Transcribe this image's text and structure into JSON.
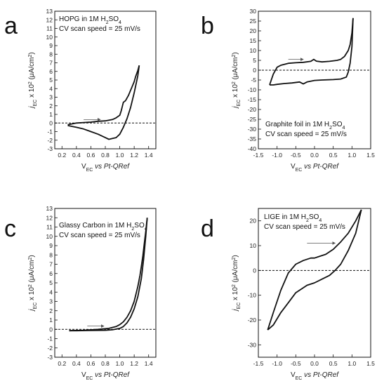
{
  "chart_data": [
    {
      "panel_label": "a",
      "type": "line",
      "annotation": [
        "HOPG in 1M H",
        "2",
        "SO",
        "4"
      ],
      "scan_speed": "CV scan speed = 25 mV/s",
      "xlabel": [
        "V",
        "EC",
        " vs Pt-QRef"
      ],
      "ylabel": [
        "j",
        "EC",
        " x 10",
        "2",
        " (μA/cm",
        "2",
        ")"
      ],
      "xlim": [
        0.1,
        1.5
      ],
      "ylim": [
        -3,
        13
      ],
      "xticks": [
        "0.2",
        "0.4",
        "0.6",
        "0.8",
        "1.0",
        "1.2",
        "1.4"
      ],
      "yticks": [
        "-3",
        "-2",
        "-1",
        "0",
        "1",
        "2",
        "3",
        "4",
        "5",
        "6",
        "7",
        "8",
        "9",
        "10",
        "11",
        "12",
        "13"
      ],
      "zero_line": true,
      "arrow": {
        "from": [
          0.5,
          0.4
        ],
        "to": [
          0.73,
          0.4
        ]
      },
      "series": [
        {
          "x": [
            0.28,
            0.4,
            0.5,
            0.6,
            0.7,
            0.8,
            0.9,
            0.95,
            1.0,
            1.02,
            1.05,
            1.08,
            1.1,
            1.12,
            1.15,
            1.18,
            1.2,
            1.22,
            1.25,
            1.27
          ],
          "y": [
            -0.2,
            0.0,
            0.05,
            0.1,
            0.2,
            0.25,
            0.4,
            0.6,
            0.9,
            1.4,
            2.4,
            2.6,
            2.9,
            3.2,
            3.8,
            4.4,
            4.8,
            5.4,
            6.1,
            6.7
          ]
        },
        {
          "x": [
            1.27,
            1.25,
            1.2,
            1.15,
            1.1,
            1.05,
            1.0,
            0.95,
            0.9,
            0.85,
            0.8,
            0.7,
            0.6,
            0.5,
            0.4,
            0.28
          ],
          "y": [
            6.7,
            5.5,
            3.5,
            1.8,
            0.5,
            -0.5,
            -1.3,
            -1.7,
            -1.8,
            -1.9,
            -1.7,
            -1.3,
            -1.0,
            -0.7,
            -0.5,
            -0.3
          ]
        }
      ]
    },
    {
      "panel_label": "b",
      "type": "line",
      "annotation": [
        "Graphite foil in 1M H",
        "2",
        "SO",
        "4"
      ],
      "scan_speed": "CV  scan speed = 25 mV/s",
      "xlabel": [
        "V",
        "EC",
        " vs Pt-QRef"
      ],
      "ylabel": [
        "j",
        "EC",
        " x 10",
        "2",
        " (μA/cm",
        "2",
        ")"
      ],
      "xlim": [
        -1.5,
        1.5
      ],
      "ylim": [
        -40,
        30
      ],
      "xticks": [
        "-1.5",
        "-1.0",
        "-0.5",
        "0.0",
        "0.5",
        "1.0",
        "1.5"
      ],
      "yticks": [
        "-40",
        "-35",
        "-30",
        "-25",
        "-20",
        "-15",
        "-10",
        "-5",
        "0",
        "5",
        "10",
        "15",
        "20",
        "25",
        "30"
      ],
      "zero_line": true,
      "arrow": {
        "from": [
          -0.7,
          5.5
        ],
        "to": [
          -0.3,
          5.5
        ]
      },
      "series": [
        {
          "x": [
            -1.2,
            -1.1,
            -1.0,
            -0.9,
            -0.7,
            -0.5,
            -0.3,
            -0.1,
            -0.02,
            0.05,
            0.2,
            0.4,
            0.6,
            0.7,
            0.8,
            0.9,
            0.95,
            1.0,
            1.03
          ],
          "y": [
            -7.5,
            -2.0,
            1.5,
            2.5,
            3.5,
            3.8,
            4.0,
            4.5,
            5.5,
            4.6,
            4.2,
            4.5,
            5.0,
            5.5,
            7.0,
            10,
            13,
            19,
            26.5
          ]
        },
        {
          "x": [
            1.03,
            1.0,
            0.95,
            0.9,
            0.85,
            0.7,
            0.5,
            0.2,
            0.0,
            -0.2,
            -0.3,
            -0.4,
            -0.6,
            -0.8,
            -1.0,
            -1.1,
            -1.2
          ],
          "y": [
            26.5,
            12,
            3.5,
            -1.0,
            -3.5,
            -4.5,
            -4.8,
            -5.0,
            -5.2,
            -6.0,
            -7.0,
            -6.0,
            -6.5,
            -6.8,
            -7.2,
            -7.5,
            -7.5
          ]
        }
      ]
    },
    {
      "panel_label": "c",
      "type": "line",
      "annotation": [
        "Glassy Carbon in 1M H",
        "2",
        "SO",
        "4"
      ],
      "scan_speed": "CV scan speed = 25 mV/s",
      "xlabel": [
        "V",
        "EC",
        " vs Pt-QRef"
      ],
      "ylabel": [
        "j",
        "EC",
        " x 10",
        "2",
        " (μA/cm",
        "2",
        ")"
      ],
      "xlim": [
        0.1,
        1.5
      ],
      "ylim": [
        -3,
        13
      ],
      "xticks": [
        "0.2",
        "0.4",
        "0.6",
        "0.8",
        "1.0",
        "1.2",
        "1.4"
      ],
      "yticks": [
        "-3",
        "-2",
        "-1",
        "0",
        "1",
        "2",
        "3",
        "4",
        "5",
        "6",
        "7",
        "8",
        "9",
        "10",
        "11",
        "12",
        "13"
      ],
      "zero_line": true,
      "arrow": {
        "from": [
          0.55,
          0.35
        ],
        "to": [
          0.78,
          0.35
        ]
      },
      "series": [
        {
          "x": [
            0.3,
            0.5,
            0.7,
            0.85,
            0.95,
            1.0,
            1.05,
            1.1,
            1.15,
            1.2,
            1.25,
            1.28,
            1.3,
            1.32,
            1.34,
            1.36,
            1.38
          ],
          "y": [
            -0.15,
            -0.1,
            0.0,
            0.1,
            0.3,
            0.5,
            0.8,
            1.3,
            2.0,
            3.0,
            4.6,
            5.8,
            6.8,
            7.9,
            9.2,
            10.5,
            12.0
          ]
        },
        {
          "x": [
            1.38,
            1.36,
            1.33,
            1.3,
            1.25,
            1.2,
            1.15,
            1.1,
            1.05,
            1.0,
            0.9,
            0.8,
            0.6,
            0.4,
            0.3
          ],
          "y": [
            12.0,
            10.0,
            7.5,
            5.5,
            3.5,
            2.2,
            1.3,
            0.7,
            0.3,
            0.1,
            -0.05,
            -0.1,
            -0.12,
            -0.15,
            -0.15
          ]
        }
      ]
    },
    {
      "panel_label": "d",
      "type": "line",
      "annotation": [
        "LIGE in 1M H",
        "2",
        "SO",
        "4"
      ],
      "scan_speed": "CV scan speed = 25 mV/s",
      "xlabel": [
        "V",
        "EC",
        " vs Pt-QRef"
      ],
      "ylabel": [
        "j",
        "EC",
        " x 10",
        "2",
        " (μA/cm",
        "2",
        ")"
      ],
      "xlim": [
        -1.5,
        1.5
      ],
      "ylim": [
        -35,
        25
      ],
      "xticks": [
        "-1.5",
        "-1.0",
        "-0.5",
        "0.0",
        "0.5",
        "1.0",
        "1.5"
      ],
      "yticks": [
        "-30",
        "-20",
        "-10",
        "0",
        "10",
        "20"
      ],
      "zero_line": true,
      "arrow": {
        "from": [
          -0.2,
          11
        ],
        "to": [
          0.55,
          11
        ]
      },
      "series": [
        {
          "x": [
            -1.25,
            -1.1,
            -0.9,
            -0.7,
            -0.5,
            -0.3,
            -0.1,
            0.0,
            0.1,
            0.3,
            0.5,
            0.7,
            0.9,
            1.1,
            1.25
          ],
          "y": [
            -24,
            -17,
            -8,
            -1,
            2.5,
            4,
            5,
            5,
            5.5,
            6.5,
            8.5,
            11.5,
            15,
            20,
            24.5
          ]
        },
        {
          "x": [
            1.25,
            1.1,
            0.9,
            0.7,
            0.55,
            0.4,
            0.2,
            0.0,
            -0.2,
            -0.5,
            -0.7,
            -0.9,
            -1.1,
            -1.25
          ],
          "y": [
            24.5,
            15,
            8,
            2.5,
            0,
            -2,
            -3.5,
            -5,
            -6,
            -9,
            -13,
            -17,
            -22,
            -24
          ]
        }
      ]
    }
  ]
}
